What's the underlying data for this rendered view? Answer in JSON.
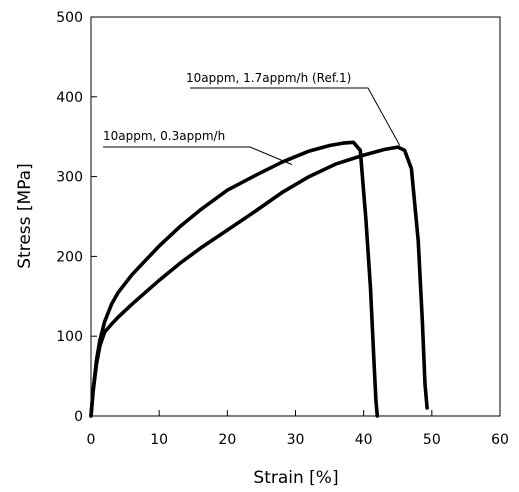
{
  "chart_data": {
    "type": "line",
    "title": "",
    "xlabel": "Strain [%]",
    "ylabel": "Stress [MPa]",
    "xlim": [
      0,
      60
    ],
    "ylim": [
      0,
      500
    ],
    "xticks": [
      0,
      10,
      20,
      30,
      40,
      50,
      60
    ],
    "yticks": [
      0,
      100,
      200,
      300,
      400,
      500
    ],
    "grid": false,
    "legend": "none",
    "line_color": "#000000",
    "series": [
      {
        "x": [
          0,
          0.3,
          0.8,
          1.3,
          2,
          3,
          4,
          6,
          8,
          10,
          13,
          16,
          20,
          24,
          28,
          32,
          35,
          37,
          38.5,
          39.5,
          40,
          40.3,
          41,
          41.5,
          41.8,
          42
        ],
        "y": [
          0,
          30,
          70,
          95,
          118,
          140,
          155,
          177,
          195,
          213,
          237,
          258,
          283,
          301,
          318,
          332,
          339,
          342,
          343,
          333,
          280,
          250,
          160,
          70,
          20,
          0
        ]
      },
      {
        "x": [
          0,
          0.3,
          0.8,
          1.3,
          2,
          3,
          4,
          6,
          8,
          10,
          13,
          16,
          20,
          24,
          28,
          32,
          36,
          40,
          43,
          45,
          46,
          47,
          48,
          48.6,
          49,
          49.3
        ],
        "y": [
          0,
          30,
          65,
          88,
          105,
          115,
          124,
          140,
          155,
          170,
          191,
          210,
          233,
          256,
          280,
          300,
          316,
          327,
          334,
          337,
          333,
          310,
          220,
          120,
          40,
          10
        ]
      }
    ],
    "annotations": [
      {
        "text": "10appm, 1.7appm/h (Ref.1)",
        "x": 45.3,
        "y": 339
      },
      {
        "text": "10appm, 0.3appm/h",
        "x": 29.5,
        "y": 315
      }
    ]
  }
}
